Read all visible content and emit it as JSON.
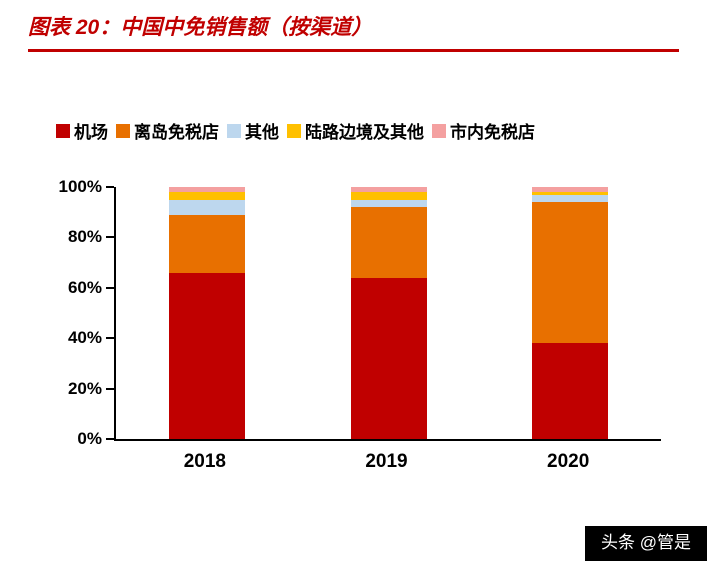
{
  "header": {
    "title": "图表 20：中国中免销售额（按渠道）"
  },
  "accent": {
    "title_color": "#C00000",
    "rule_color": "#C00000"
  },
  "chart_data": {
    "type": "bar",
    "stacked": true,
    "title": "中国中免销售额（按渠道）",
    "categories": [
      "2018",
      "2019",
      "2020"
    ],
    "series": [
      {
        "name": "机场",
        "color": "#C00000",
        "values": [
          66,
          64,
          38
        ]
      },
      {
        "name": "离岛免税店",
        "color": "#E87000",
        "values": [
          23,
          28,
          56
        ]
      },
      {
        "name": "其他",
        "color": "#BDD7EE",
        "values": [
          6,
          3,
          3
        ]
      },
      {
        "name": "陆路边境及其他",
        "color": "#FFC000",
        "values": [
          3,
          3,
          1
        ]
      },
      {
        "name": "市内免税店",
        "color": "#F4A0A0",
        "values": [
          2,
          2,
          2
        ]
      }
    ],
    "y_ticks": [
      "0%",
      "20%",
      "40%",
      "60%",
      "80%",
      "100%"
    ],
    "ylim": [
      0,
      100
    ],
    "legend_position": "top",
    "grid": false
  },
  "watermark": {
    "text": "头条 @管是"
  }
}
